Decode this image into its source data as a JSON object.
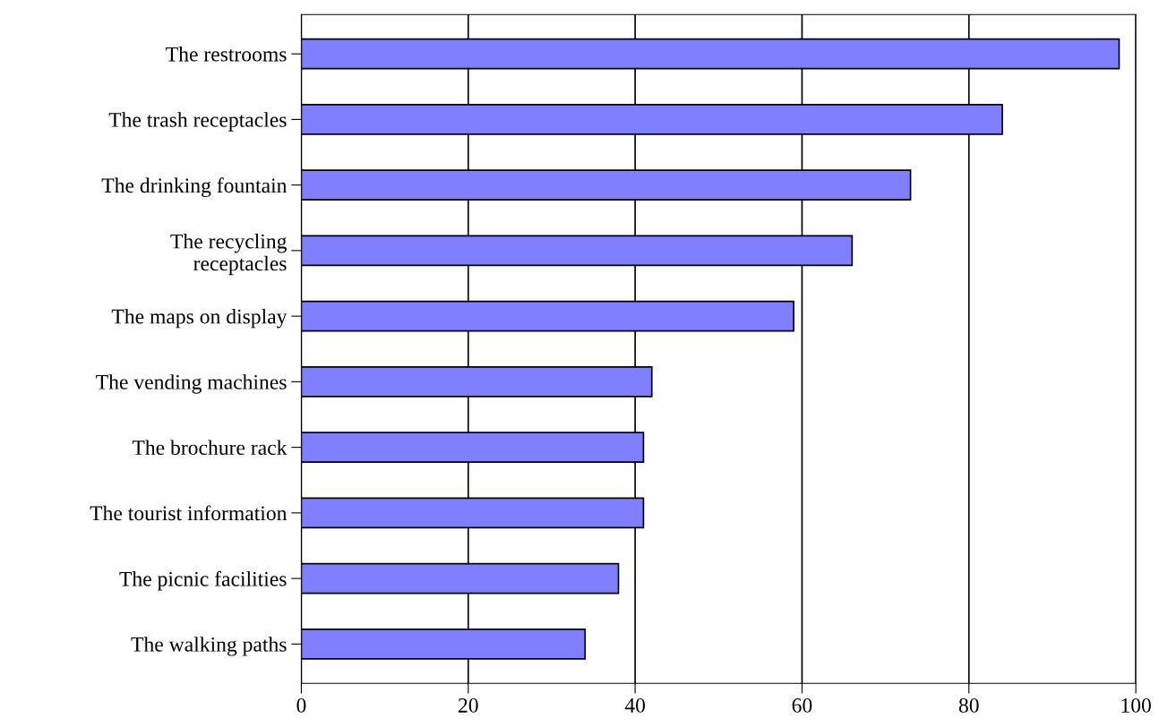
{
  "chart_data": {
    "type": "bar",
    "orientation": "horizontal",
    "categories": [
      "The restrooms",
      "The trash receptacles",
      "The drinking fountain",
      "The recycling\nreceptacles",
      "The maps on display",
      "The vending machines",
      "The brochure rack",
      "The tourist information",
      "The picnic facilities",
      "The walking paths"
    ],
    "values": [
      98,
      84,
      73,
      66,
      59,
      42,
      41,
      41,
      38,
      34
    ],
    "color": "#7f7fff",
    "xlim": [
      0,
      100
    ],
    "xticks": [
      0,
      20,
      40,
      60,
      80,
      100
    ],
    "grid": "x"
  }
}
